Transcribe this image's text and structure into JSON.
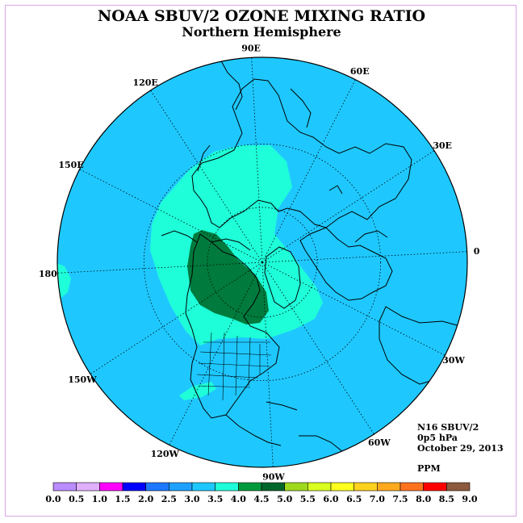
{
  "header": {
    "title": "NOAA SBUV/2 OZONE MIXING RATIO",
    "subtitle": "Northern Hemisphere"
  },
  "info": {
    "instrument": "N16 SBUV/2",
    "level": "0p5 hPa",
    "date": "October 29, 2013",
    "units": "PPM"
  },
  "map": {
    "projection": "north-polar-stereographic",
    "longitude_labels": [
      {
        "lon": 0,
        "text": "0"
      },
      {
        "lon": 30,
        "text": "30E"
      },
      {
        "lon": 60,
        "text": "60E"
      },
      {
        "lon": 90,
        "text": "90E"
      },
      {
        "lon": 120,
        "text": "120E"
      },
      {
        "lon": 150,
        "text": "150E"
      },
      {
        "lon": 180,
        "text": "180"
      },
      {
        "lon": -150,
        "text": "150W"
      },
      {
        "lon": -120,
        "text": "120W"
      },
      {
        "lon": -90,
        "text": "90W"
      },
      {
        "lon": -60,
        "text": "60W"
      },
      {
        "lon": -30,
        "text": "30W"
      }
    ],
    "latitude_circles": [
      30,
      60
    ],
    "colors": {
      "background_field": "#1ec8ff",
      "field_3_5_to_4_0": "#1effd9",
      "field_4_5_to_5_0": "#007a3d",
      "coastline": "#000000",
      "gridline": "#000000"
    }
  },
  "colorbar": {
    "ticks": [
      "0.0",
      "0.5",
      "1.0",
      "1.5",
      "2.0",
      "2.5",
      "3.0",
      "3.5",
      "4.0",
      "4.5",
      "5.0",
      "5.5",
      "6.0",
      "6.5",
      "7.0",
      "7.5",
      "8.0",
      "8.5",
      "9.0"
    ],
    "colors": [
      "#b98cff",
      "#e0b0ff",
      "#ff00ff",
      "#0000ff",
      "#1e78ff",
      "#1ea0ff",
      "#1ec8ff",
      "#1effd9",
      "#009a3d",
      "#00652b",
      "#9fd91e",
      "#d9ff1e",
      "#ffff1e",
      "#ffd21e",
      "#ffaa1e",
      "#ff731e",
      "#ff0000",
      "#8c5a3c"
    ]
  }
}
